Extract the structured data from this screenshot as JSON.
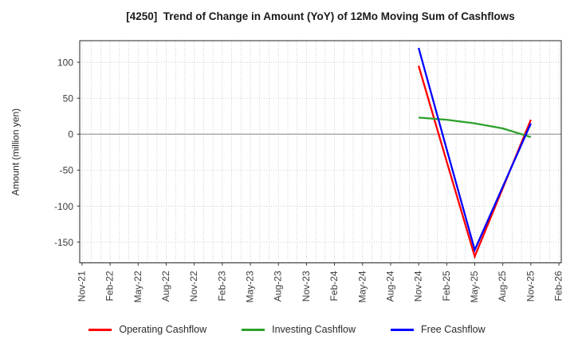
{
  "chart_data": {
    "type": "line",
    "title": "[4250]  Trend of Change in Amount (YoY) of 12Mo Moving Sum of Cashflows",
    "xlabel": "",
    "ylabel": "Amount (million yen)",
    "x_tick_labels": [
      "Nov-21",
      "Feb-22",
      "May-22",
      "Aug-22",
      "Nov-22",
      "Feb-23",
      "May-23",
      "Aug-23",
      "Nov-23",
      "Feb-24",
      "May-24",
      "Aug-24",
      "Nov-24",
      "Feb-25",
      "May-25",
      "Aug-25",
      "Nov-25",
      "Feb-26"
    ],
    "months_per_tick": 3,
    "x_range_months": [
      -0.25,
      51.25
    ],
    "y_ticks": [
      100,
      50,
      0,
      -50,
      -100,
      -150
    ],
    "ylim": [
      -179,
      130
    ],
    "grid": true,
    "legend_position": "bottom center",
    "categories": [
      "Nov-24",
      "Feb-25",
      "May-25",
      "Aug-25",
      "Nov-25"
    ],
    "series": [
      {
        "name": "Operating Cashflow",
        "color": "#ff0000",
        "values": [
          95,
          -38,
          -170,
          -75,
          20
        ]
      },
      {
        "name": "Investing Cashflow",
        "color": "#2ca02c",
        "values": [
          23,
          20,
          15,
          8,
          -4
        ]
      },
      {
        "name": "Free Cashflow",
        "color": "#0000ff",
        "values": [
          120,
          -21,
          -161,
          -73,
          15
        ]
      }
    ],
    "colors": {
      "grid_dotted": "#c2c2c2",
      "zero_line": "#8f8f8f",
      "plot_border": "#262626",
      "tick_text": "#3c3c3c"
    }
  }
}
